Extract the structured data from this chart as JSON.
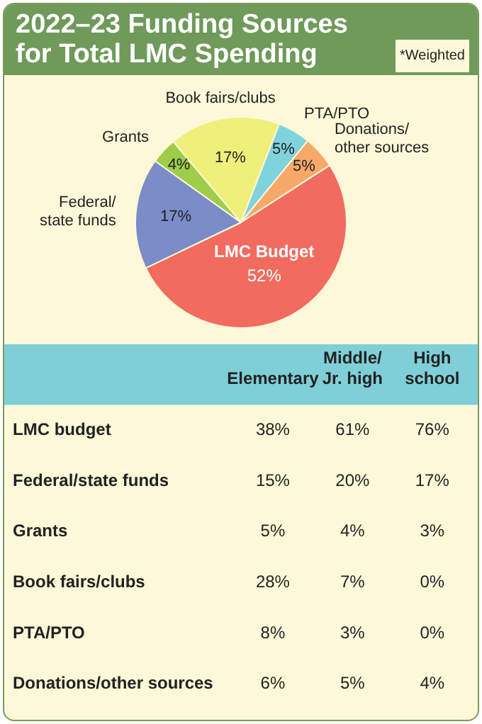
{
  "chart_data": [
    {
      "type": "pie",
      "title": "2022–23 Funding Sources for Total LMC Spending",
      "annotations": [
        "*Weighted"
      ],
      "categories": [
        "Book fairs/clubs",
        "PTA/PTO",
        "Donations/ other sources",
        "LMC Budget",
        "Federal/ state funds",
        "Grants"
      ],
      "values": [
        17,
        5,
        5,
        52,
        17,
        4
      ],
      "value_labels": [
        "17%",
        "5%",
        "5%",
        "52%",
        "17%",
        "4%"
      ],
      "colors": [
        "#eef07a",
        "#7fd3dc",
        "#f7a96a",
        "#f26b5f",
        "#7b8cc8",
        "#9fcd4a"
      ],
      "legend": false
    },
    {
      "type": "heatmap",
      "categories": [
        "Elementary",
        "Middle/ Jr. high",
        "High school"
      ],
      "y_categories": [
        "LMC budget",
        "Federal/state funds",
        "Grants",
        "Book fairs/clubs",
        "PTA/PTO",
        "Donations/other sources"
      ],
      "cells": [
        [
          38,
          61,
          76
        ],
        [
          15,
          20,
          17
        ],
        [
          5,
          4,
          3
        ],
        [
          28,
          7,
          0
        ],
        [
          8,
          3,
          0
        ],
        [
          6,
          5,
          4
        ]
      ],
      "cell_labels": [
        [
          "38%",
          "61%",
          "76%"
        ],
        [
          "15%",
          "20%",
          "17%"
        ],
        [
          "5%",
          "4%",
          "3%"
        ],
        [
          "28%",
          "7%",
          "0%"
        ],
        [
          "8%",
          "3%",
          "0%"
        ],
        [
          "6%",
          "5%",
          "4%"
        ]
      ]
    }
  ]
}
